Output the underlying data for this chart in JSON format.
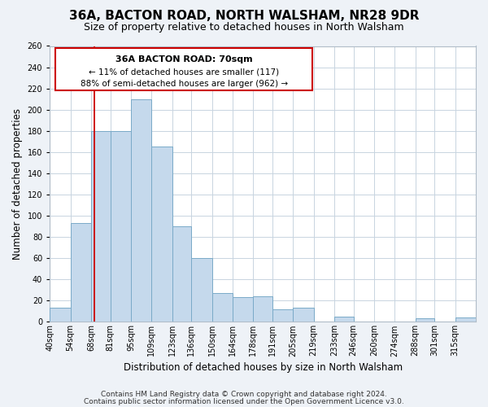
{
  "title": "36A, BACTON ROAD, NORTH WALSHAM, NR28 9DR",
  "subtitle": "Size of property relative to detached houses in North Walsham",
  "xlabel": "Distribution of detached houses by size in North Walsham",
  "ylabel": "Number of detached properties",
  "bar_color": "#c5d9ec",
  "bar_edge_color": "#7aaac8",
  "background_color": "#eef2f7",
  "plot_bg_color": "#ffffff",
  "grid_color": "#c8d4e0",
  "annotation_box_edge": "#cc0000",
  "annotation_line_color": "#cc0000",
  "annotation_text": "36A BACTON ROAD: 70sqm",
  "annotation_line1": "← 11% of detached houses are smaller (117)",
  "annotation_line2": "88% of semi-detached houses are larger (962) →",
  "footer1": "Contains HM Land Registry data © Crown copyright and database right 2024.",
  "footer2": "Contains public sector information licensed under the Open Government Licence v3.0.",
  "bins": [
    40,
    54,
    68,
    81,
    95,
    109,
    123,
    136,
    150,
    164,
    178,
    191,
    205,
    219,
    233,
    246,
    260,
    274,
    288,
    301,
    315
  ],
  "bin_labels": [
    "40sqm",
    "54sqm",
    "68sqm",
    "81sqm",
    "95sqm",
    "109sqm",
    "123sqm",
    "136sqm",
    "150sqm",
    "164sqm",
    "178sqm",
    "191sqm",
    "205sqm",
    "219sqm",
    "233sqm",
    "246sqm",
    "260sqm",
    "274sqm",
    "288sqm",
    "301sqm",
    "315sqm"
  ],
  "counts": [
    13,
    93,
    180,
    180,
    210,
    165,
    90,
    60,
    27,
    23,
    24,
    12,
    13,
    0,
    5,
    0,
    0,
    0,
    3,
    0,
    4
  ],
  "ylim": [
    0,
    260
  ],
  "yticks": [
    0,
    20,
    40,
    60,
    80,
    100,
    120,
    140,
    160,
    180,
    200,
    220,
    240,
    260
  ],
  "vline_x": 70,
  "title_fontsize": 11,
  "subtitle_fontsize": 9,
  "axis_label_fontsize": 8.5,
  "tick_fontsize": 7,
  "footer_fontsize": 6.5,
  "ann_fontsize_title": 8,
  "ann_fontsize_body": 7.5
}
